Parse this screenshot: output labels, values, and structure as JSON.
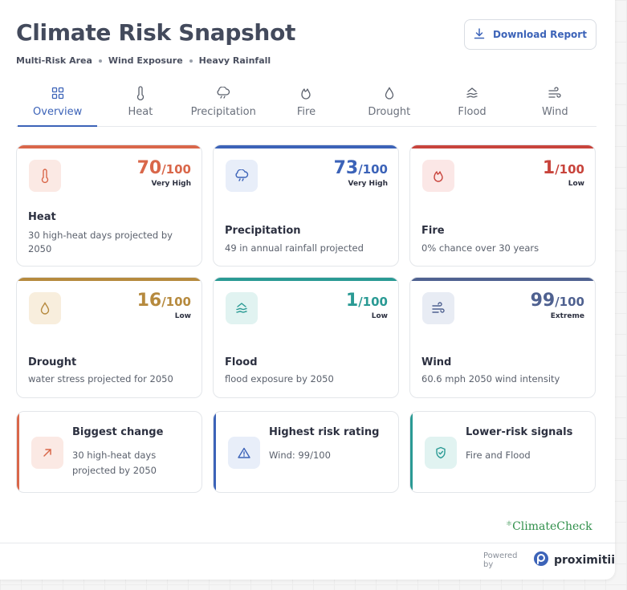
{
  "header": {
    "title": "Climate Risk Snapshot",
    "subtitle_parts": [
      "Multi-Risk Area",
      "Wind Exposure",
      "Heavy Rainfall"
    ],
    "download_label": "Download Report"
  },
  "tabs": [
    {
      "label": "Overview",
      "icon": "grid-icon",
      "active": true
    },
    {
      "label": "Heat",
      "icon": "thermometer-icon"
    },
    {
      "label": "Precipitation",
      "icon": "cloud-rain-icon"
    },
    {
      "label": "Fire",
      "icon": "flame-icon"
    },
    {
      "label": "Drought",
      "icon": "droplet-icon"
    },
    {
      "label": "Flood",
      "icon": "waves-icon"
    },
    {
      "label": "Wind",
      "icon": "wind-icon"
    }
  ],
  "risk_cards": [
    {
      "name": "Heat",
      "score": "70",
      "denominator": "/100",
      "level": "Very High",
      "desc": "30 high-heat days projected by 2050",
      "color": "#d9674a",
      "tint": "#fbe9e4"
    },
    {
      "name": "Precipitation",
      "score": "73",
      "denominator": "/100",
      "level": "Very High",
      "desc": "49 in annual rainfall projected",
      "color": "#3c63b8",
      "tint": "#e8eef9"
    },
    {
      "name": "Fire",
      "score": "1",
      "denominator": "/100",
      "level": "Low",
      "desc": "0% chance over 30 years",
      "color": "#c8443c",
      "tint": "#fbe7e6"
    },
    {
      "name": "Drought",
      "score": "16",
      "denominator": "/100",
      "level": "Low",
      "desc": "water stress projected for 2050",
      "color": "#b68a3e",
      "tint": "#f8eedd"
    },
    {
      "name": "Flood",
      "score": "1",
      "denominator": "/100",
      "level": "Low",
      "desc": "flood exposure by 2050",
      "color": "#2a9a94",
      "tint": "#e1f3f1"
    },
    {
      "name": "Wind",
      "score": "99",
      "denominator": "/100",
      "level": "Extreme",
      "desc": "60.6 mph 2050 wind intensity",
      "color": "#4f6190",
      "tint": "#e8ecf4"
    }
  ],
  "summary_cards": [
    {
      "title": "Biggest change",
      "desc": "30 high-heat days projected by 2050",
      "icon": "arrow-up-right-icon",
      "color": "#d9674a",
      "tint": "#fbe9e4"
    },
    {
      "title": "Highest risk rating",
      "desc": "Wind: 99/100",
      "icon": "warning-icon",
      "color": "#3c63b8",
      "tint": "#e8eef9"
    },
    {
      "title": "Lower-risk signals",
      "desc": "Fire and Flood",
      "icon": "shield-check-icon",
      "color": "#2a9a94",
      "tint": "#e1f3f1"
    }
  ],
  "brand": "ClimateCheck",
  "footer": {
    "powered_by": "Powered by",
    "company": "proximitii"
  }
}
